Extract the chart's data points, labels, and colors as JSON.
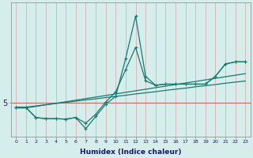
{
  "xlabel": "Humidex (Indice chaleur)",
  "x_values": [
    0,
    1,
    2,
    3,
    4,
    5,
    6,
    7,
    8,
    9,
    10,
    11,
    12,
    13,
    14,
    15,
    16,
    17,
    18,
    19,
    20,
    21,
    22,
    23
  ],
  "line_straight1": [
    4.82,
    4.82,
    4.87,
    4.93,
    4.98,
    5.03,
    5.09,
    5.14,
    5.19,
    5.25,
    5.3,
    5.35,
    5.41,
    5.46,
    5.51,
    5.57,
    5.62,
    5.67,
    5.73,
    5.78,
    5.83,
    5.89,
    5.94,
    5.99
  ],
  "line_straight2": [
    4.78,
    4.78,
    4.85,
    4.92,
    4.99,
    5.06,
    5.13,
    5.2,
    5.27,
    5.34,
    5.41,
    5.48,
    5.55,
    5.62,
    5.69,
    5.76,
    5.83,
    5.9,
    5.97,
    6.04,
    6.11,
    6.18,
    6.25,
    6.32
  ],
  "line_jagged1": [
    4.8,
    4.8,
    4.35,
    4.3,
    4.3,
    4.28,
    4.35,
    4.1,
    4.5,
    5.05,
    5.5,
    6.5,
    7.5,
    6.0,
    5.8,
    5.85,
    5.85,
    5.85,
    5.85,
    5.85,
    6.2,
    6.75,
    6.85,
    6.85
  ],
  "line_jagged2": [
    4.8,
    4.8,
    4.35,
    4.3,
    4.3,
    4.28,
    4.35,
    3.85,
    4.4,
    4.95,
    5.3,
    7.0,
    8.9,
    6.2,
    5.8,
    5.85,
    5.85,
    5.85,
    5.85,
    5.85,
    6.2,
    6.75,
    6.85,
    6.85
  ],
  "hline_y": 5.0,
  "ylim": [
    3.5,
    9.5
  ],
  "xlim": [
    -0.5,
    23.5
  ],
  "bg_color": "#d5eeeb",
  "grid_color": "#b8d8d5",
  "line_color": "#1a7a70",
  "hline_color": "#cc6666",
  "xticks": [
    0,
    1,
    2,
    3,
    4,
    5,
    6,
    7,
    8,
    9,
    10,
    11,
    12,
    13,
    14,
    15,
    16,
    17,
    18,
    19,
    20,
    21,
    22,
    23
  ],
  "ytick_val": 5.0,
  "ytick_label": "5"
}
